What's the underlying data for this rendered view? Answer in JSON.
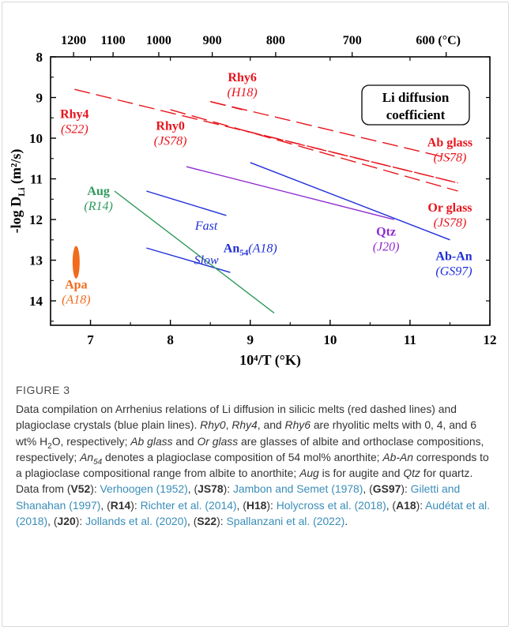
{
  "colors": {
    "melt": "#e8141c",
    "plag": "#1f2ed8",
    "aug": "#2e9a5b",
    "qtz": "#8f2bd0",
    "apa": "#f26b1d",
    "axis": "#000000",
    "caption_link": "#3a8db8"
  },
  "chart_data": {
    "type": "line",
    "xlabel": "10⁴/T (°K)",
    "ylabel": "-log D",
    "ylabel_sub": "Li",
    "ylabel_tail": " (m²/s)",
    "x_ticks": [
      "7",
      "8",
      "9",
      "10",
      "11",
      "12"
    ],
    "y_ticks": [
      "8",
      "9",
      "10",
      "11",
      "12",
      "13",
      "14"
    ],
    "top_ticks": [
      "1200",
      "1100",
      "1000",
      "900",
      "800",
      "700",
      "600 (°C)"
    ],
    "top_tick_celsius": [
      1200,
      1100,
      1000,
      900,
      800,
      700,
      600
    ],
    "xlim": [
      6.5,
      12
    ],
    "ylim": [
      8,
      14.6
    ],
    "y_inverted": true,
    "grid": false,
    "legend_box": "Li diffusion coefficient",
    "legend_box_lines": [
      "Li diffusion",
      "coefficient"
    ],
    "series": [
      {
        "name": "Rhy4",
        "ref": "S22",
        "style": "dashed",
        "color": "melt",
        "x": [
          6.8,
          11.6
        ],
        "y": [
          8.8,
          11.1
        ]
      },
      {
        "name": "Rhy6",
        "ref": "H18",
        "style": "dashed",
        "color": "melt",
        "x": [
          8.5,
          8.9
        ],
        "y": [
          9.1,
          9.3
        ]
      },
      {
        "name": "Rhy0",
        "ref": "JS78",
        "style": "dashed",
        "color": "melt",
        "x": [
          8.9,
          11.6
        ],
        "y": [
          9.8,
          11.1
        ]
      },
      {
        "name": "Ab glass",
        "ref": "JS78",
        "style": "dashed",
        "color": "melt",
        "x": [
          8.5,
          11.5
        ],
        "y": [
          9.1,
          10.5
        ]
      },
      {
        "name": "Or glass",
        "ref": "JS78",
        "style": "dashed",
        "color": "melt",
        "x": [
          8.0,
          11.6
        ],
        "y": [
          9.3,
          11.3
        ]
      },
      {
        "name": "Ab-An",
        "ref": "GS97",
        "style": "solid",
        "color": "plag",
        "x": [
          9.0,
          11.5
        ],
        "y": [
          10.6,
          12.5
        ]
      },
      {
        "name": "An54 Fast",
        "ref": "A18",
        "style": "solid",
        "color": "plag",
        "x": [
          7.7,
          8.7
        ],
        "y": [
          11.3,
          11.9
        ]
      },
      {
        "name": "An54 Slow",
        "ref": "A18",
        "style": "solid",
        "color": "plag",
        "x": [
          7.7,
          8.75
        ],
        "y": [
          12.7,
          13.3
        ]
      },
      {
        "name": "Qtz",
        "ref": "J20",
        "style": "solid",
        "color": "qtz",
        "x": [
          8.2,
          10.8
        ],
        "y": [
          10.7,
          12.0
        ]
      },
      {
        "name": "Aug",
        "ref": "R14",
        "style": "solid",
        "color": "aug",
        "x": [
          7.3,
          9.3
        ],
        "y": [
          11.3,
          14.3
        ]
      },
      {
        "name": "Apa",
        "ref": "A18",
        "style": "range",
        "color": "apa",
        "x": [
          6.82,
          6.82
        ],
        "y": [
          12.65,
          13.45
        ]
      }
    ],
    "labels": [
      {
        "name": "Rhy4",
        "ref": "S22",
        "color": "melt",
        "anchor": "middle",
        "x": 6.8,
        "y": 9.5
      },
      {
        "name": "Rhy6",
        "ref": "H18",
        "color": "melt",
        "anchor": "middle",
        "x": 8.9,
        "y": 8.6
      },
      {
        "name": "Rhy0",
        "ref": "JS78",
        "color": "melt",
        "anchor": "middle",
        "x": 8.0,
        "y": 9.8
      },
      {
        "name": "Ab glass",
        "ref": "JS78",
        "color": "melt",
        "anchor": "middle",
        "x": 11.5,
        "y": 10.2
      },
      {
        "name": "Or glass",
        "ref": "JS78",
        "color": "melt",
        "anchor": "middle",
        "x": 11.5,
        "y": 11.8
      },
      {
        "name": "Aug",
        "ref": "R14",
        "color": "aug",
        "anchor": "middle",
        "x": 7.1,
        "y": 11.4
      },
      {
        "name": "Apa",
        "ref": "A18",
        "color": "apa",
        "anchor": "middle",
        "x": 6.82,
        "y": 13.7
      },
      {
        "name": "Qtz",
        "ref": "J20",
        "color": "qtz",
        "anchor": "middle",
        "x": 10.7,
        "y": 12.4
      },
      {
        "name": "Ab-An",
        "ref": "GS97",
        "color": "plag",
        "anchor": "middle",
        "x": 11.55,
        "y": 13.0
      },
      {
        "name": "Fast",
        "ref": "",
        "color": "plag",
        "anchor": "middle",
        "x": 8.45,
        "y": 12.25,
        "italic_name": true
      },
      {
        "name": "Slow",
        "ref": "",
        "color": "plag",
        "anchor": "middle",
        "x": 8.45,
        "y": 13.1,
        "italic_name": true
      }
    ],
    "an54_label": {
      "main": "An",
      "sub": "54",
      "ref": "A18",
      "x": 9.0,
      "y": 12.8
    }
  },
  "caption": {
    "label": "FIGURE 3",
    "text": "Data compilation on Arrhenius relations of Li diffusion in silicic melts (red dashed lines) and plagioclase crystals (blue plain lines). Rhy0, Rhy4, and Rhy6 are rhyolitic melts with 0, 4, and 6 wt% H₂O, respectively; Ab glass and Or glass are glasses of albite and orthoclase compositions, respectively; An₅₄ denotes a plagioclase composition of 54 mol% anorthite; Ab-An corresponds to a plagioclase compositional range from albite to anorthite; Aug is for augite and Qtz for quartz. Data from (V52): Verhoogen (1952), (JS78): Jambon and Semet (1978), (GS97): Giletti and Shanahan (1997), (R14): Richter et al. (2014), (H18): Holycross et al. (2018), (A18): Audétat et al. (2018), (J20): Jollands et al. (2020), (S22): Spallanzani et al. (2022).",
    "segments": [
      {
        "t": "Data compilation on Arrhenius relations of Li diffusion in silicic melts (red dashed lines) and plagioclase crystals (blue plain lines). "
      },
      {
        "t": "Rhy0",
        "i": true
      },
      {
        "t": ", "
      },
      {
        "t": "Rhy4",
        "i": true
      },
      {
        "t": ", and "
      },
      {
        "t": "Rhy6",
        "i": true
      },
      {
        "t": " are rhyolitic melts with 0, 4, and 6 wt% H"
      },
      {
        "t": "2",
        "sub": true
      },
      {
        "t": "O, respectively; "
      },
      {
        "t": "Ab glass",
        "i": true
      },
      {
        "t": " and "
      },
      {
        "t": "Or glass",
        "i": true
      },
      {
        "t": " are glasses of albite and orthoclase compositions, respectively; "
      },
      {
        "t": "An",
        "i": true
      },
      {
        "t": "54",
        "i": true,
        "sub": true
      },
      {
        "t": " denotes a plagioclase composition of 54 mol% anorthite; "
      },
      {
        "t": "Ab-An",
        "i": true
      },
      {
        "t": " corresponds to a plagioclase compositional range from albite to anorthite; "
      },
      {
        "t": "Aug",
        "i": true
      },
      {
        "t": " is for augite and "
      },
      {
        "t": "Qtz",
        "i": true
      },
      {
        "t": " for quartz. Data from ("
      },
      {
        "t": "V52",
        "b": true
      },
      {
        "t": "): "
      },
      {
        "t": "Verhoogen (1952)",
        "link": true
      },
      {
        "t": ", ("
      },
      {
        "t": "JS78",
        "b": true
      },
      {
        "t": "): "
      },
      {
        "t": "Jambon and Semet (1978)",
        "link": true
      },
      {
        "t": ", ("
      },
      {
        "t": "GS97",
        "b": true
      },
      {
        "t": "): "
      },
      {
        "t": "Giletti and Shanahan (1997)",
        "link": true
      },
      {
        "t": ", ("
      },
      {
        "t": "R14",
        "b": true
      },
      {
        "t": "): "
      },
      {
        "t": "Richter et al. (2014)",
        "link": true
      },
      {
        "t": ", ("
      },
      {
        "t": "H18",
        "b": true
      },
      {
        "t": "): "
      },
      {
        "t": "Holycross et al. (2018)",
        "link": true
      },
      {
        "t": ", ("
      },
      {
        "t": "A18",
        "b": true
      },
      {
        "t": "): "
      },
      {
        "t": "Audétat et al. (2018)",
        "link": true
      },
      {
        "t": ", ("
      },
      {
        "t": "J20",
        "b": true
      },
      {
        "t": "): "
      },
      {
        "t": "Jollands et al. (2020)",
        "link": true
      },
      {
        "t": ", ("
      },
      {
        "t": "S22",
        "b": true
      },
      {
        "t": "): "
      },
      {
        "t": "Spallanzani et al. (2022)",
        "link": true
      },
      {
        "t": "."
      }
    ]
  }
}
